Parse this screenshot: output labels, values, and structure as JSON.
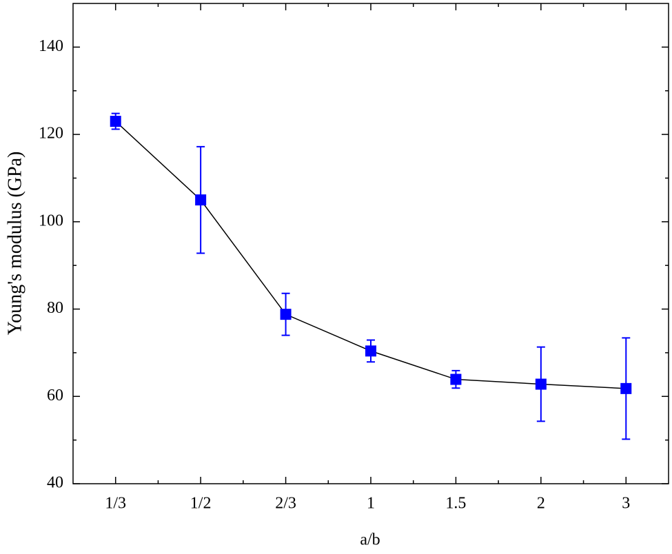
{
  "chart_data": {
    "type": "line",
    "xlabel": "a/b",
    "ylabel": "Young's modulus (GPa)",
    "categories": [
      "1/3",
      "1/2",
      "2/3",
      "1",
      "1.5",
      "2",
      "3"
    ],
    "series": [
      {
        "color": "#0000ff",
        "line_color": "#000000",
        "values": [
          123,
          105,
          78.8,
          70.4,
          63.9,
          62.8,
          61.8
        ],
        "errors": [
          1.8,
          12.2,
          4.8,
          2.5,
          2,
          8.5,
          11.6
        ]
      }
    ],
    "ylim": [
      40,
      150
    ],
    "yticks": [
      40,
      60,
      80,
      100,
      120,
      140
    ],
    "grid": false
  }
}
